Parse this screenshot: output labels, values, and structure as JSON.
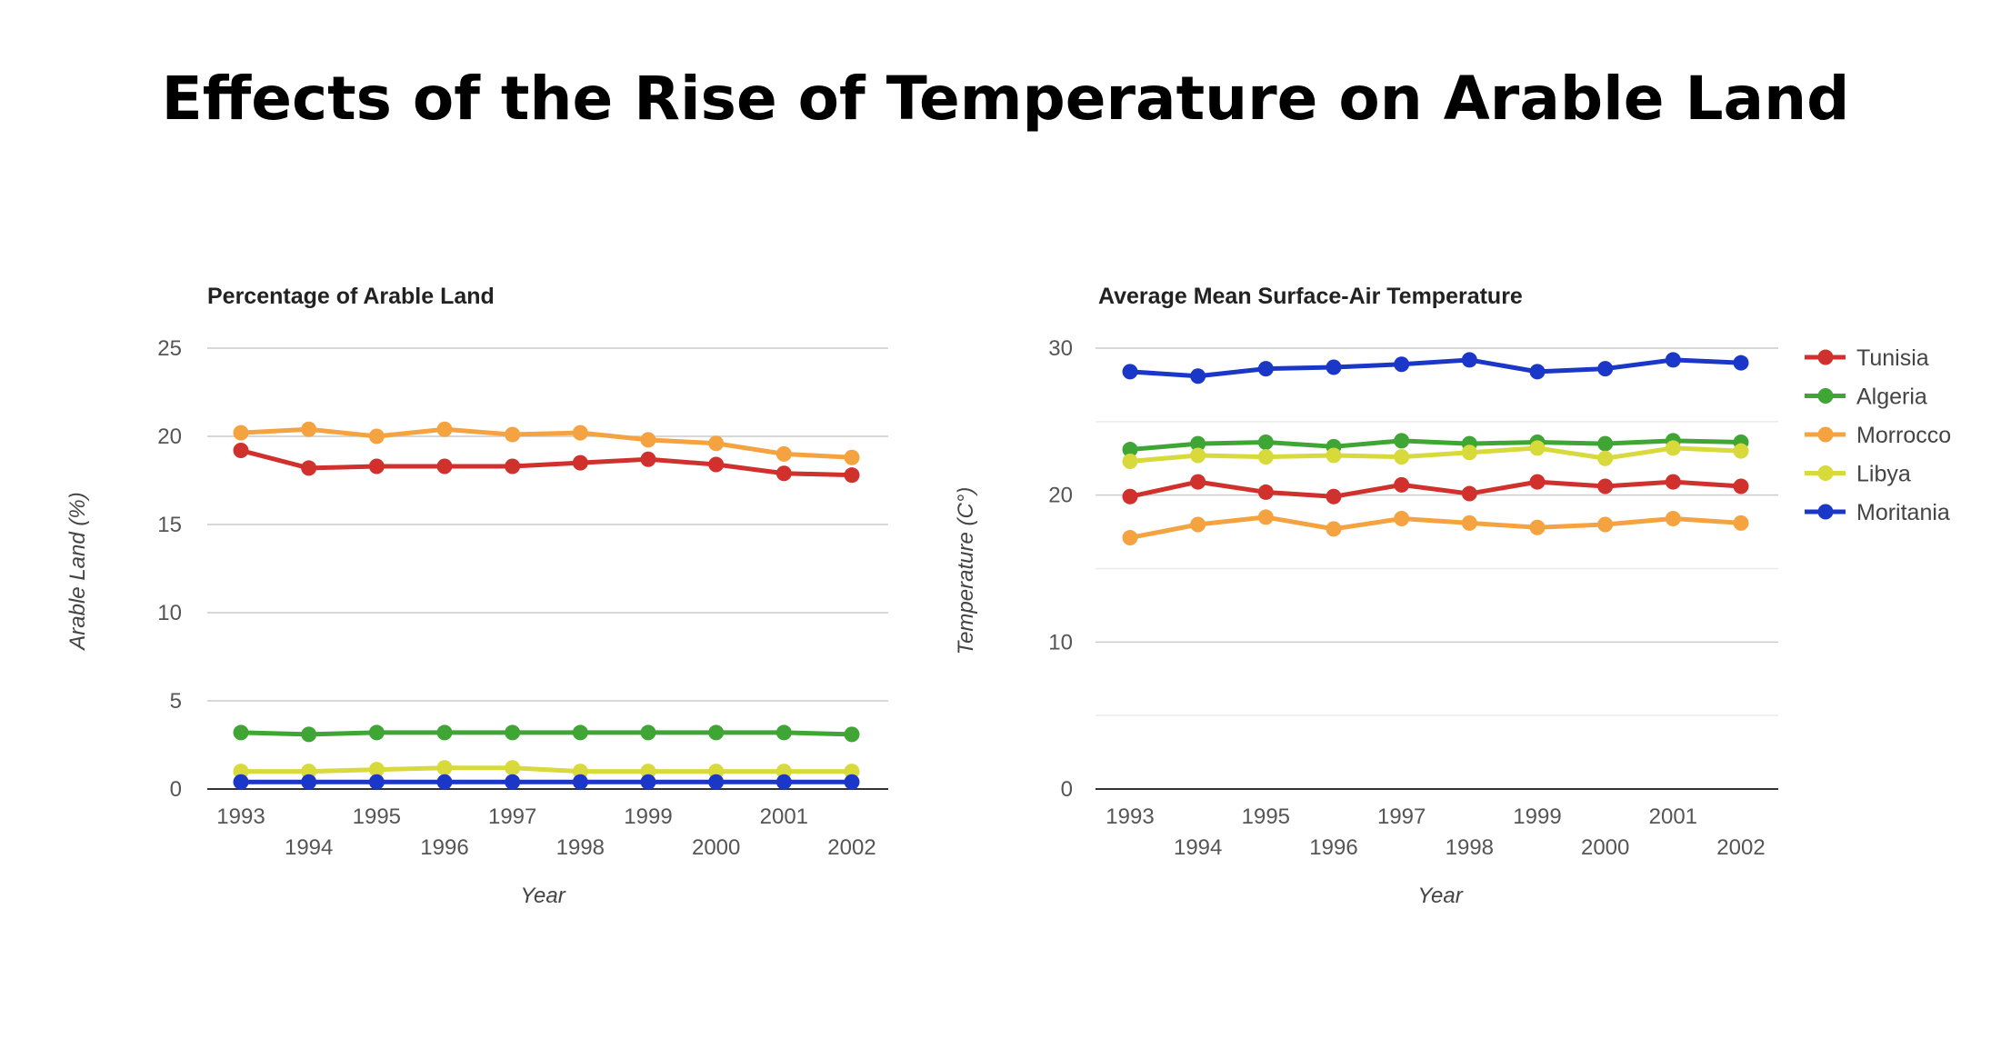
{
  "page": {
    "title": "Effects of the Rise of Temperature on Arable Land"
  },
  "colors": {
    "Tunisia": "#d0312d",
    "Algeria": "#3fa535",
    "Morrocco": "#f4a340",
    "Libya": "#d8d93a",
    "Moritania": "#1a37c8"
  },
  "legend": [
    "Tunisia",
    "Algeria",
    "Morrocco",
    "Libya",
    "Moritania"
  ],
  "chart_data": [
    {
      "type": "line",
      "title": "Percentage of Arable Land",
      "xlabel": "Year",
      "ylabel": "Arable Land (%)",
      "ylim": [
        0,
        25
      ],
      "yticks": [
        "0",
        "5",
        "10",
        "15",
        "20",
        "25"
      ],
      "x": [
        "1993",
        "1994",
        "1995",
        "1996",
        "1997",
        "1998",
        "1999",
        "2000",
        "2001",
        "2002"
      ],
      "series": [
        {
          "name": "Tunisia",
          "values": [
            19.2,
            18.2,
            18.3,
            18.3,
            18.3,
            18.5,
            18.7,
            18.4,
            17.9,
            17.8
          ]
        },
        {
          "name": "Algeria",
          "values": [
            3.2,
            3.1,
            3.2,
            3.2,
            3.2,
            3.2,
            3.2,
            3.2,
            3.2,
            3.1
          ]
        },
        {
          "name": "Morrocco",
          "values": [
            20.2,
            20.4,
            20.0,
            20.4,
            20.1,
            20.2,
            19.8,
            19.6,
            19.0,
            18.8
          ]
        },
        {
          "name": "Libya",
          "values": [
            1.0,
            1.0,
            1.1,
            1.2,
            1.2,
            1.0,
            1.0,
            1.0,
            1.0,
            1.0
          ]
        },
        {
          "name": "Moritania",
          "values": [
            0.4,
            0.4,
            0.4,
            0.4,
            0.4,
            0.4,
            0.4,
            0.4,
            0.4,
            0.4
          ]
        }
      ]
    },
    {
      "type": "line",
      "title": "Average Mean Surface-Air Temperature",
      "xlabel": "Year",
      "ylabel": "Temperature (C°)",
      "ylim": [
        0,
        30
      ],
      "yticks": [
        "0",
        "10",
        "20",
        "30"
      ],
      "x": [
        "1993",
        "1994",
        "1995",
        "1996",
        "1997",
        "1998",
        "1999",
        "2000",
        "2001",
        "2002"
      ],
      "series": [
        {
          "name": "Tunisia",
          "values": [
            19.9,
            20.9,
            20.2,
            19.9,
            20.7,
            20.1,
            20.9,
            20.6,
            20.9,
            20.6
          ]
        },
        {
          "name": "Algeria",
          "values": [
            23.1,
            23.5,
            23.6,
            23.3,
            23.7,
            23.5,
            23.6,
            23.5,
            23.7,
            23.6
          ]
        },
        {
          "name": "Morrocco",
          "values": [
            17.1,
            18.0,
            18.5,
            17.7,
            18.4,
            18.1,
            17.8,
            18.0,
            18.4,
            18.1
          ]
        },
        {
          "name": "Libya",
          "values": [
            22.3,
            22.7,
            22.6,
            22.7,
            22.6,
            22.9,
            23.2,
            22.5,
            23.2,
            23.0
          ]
        },
        {
          "name": "Moritania",
          "values": [
            28.4,
            28.1,
            28.6,
            28.7,
            28.9,
            29.2,
            28.4,
            28.6,
            29.2,
            29.0
          ]
        }
      ]
    }
  ]
}
